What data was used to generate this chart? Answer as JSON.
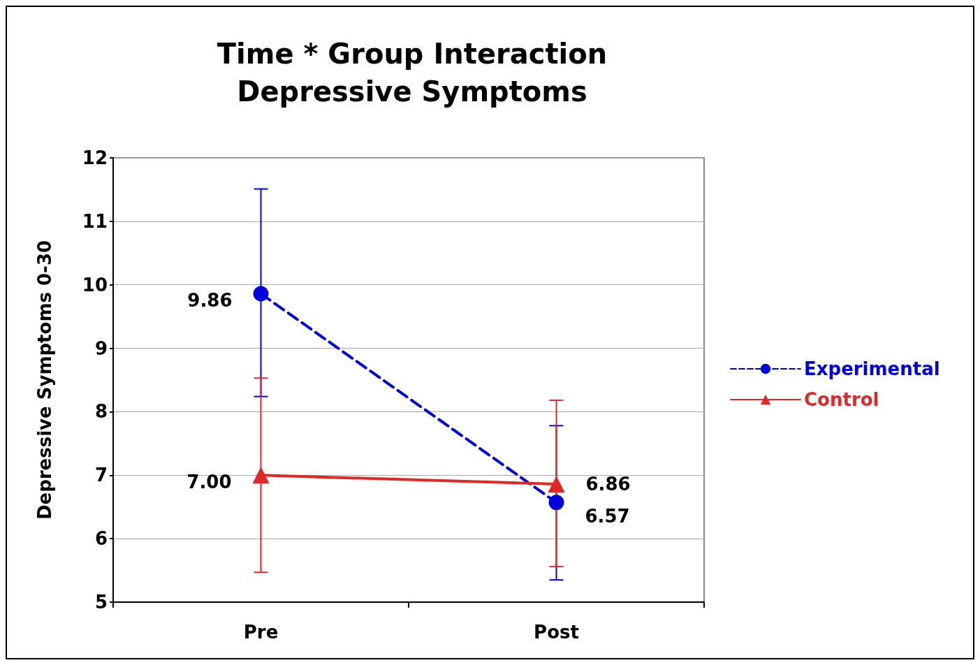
{
  "chart_data": {
    "type": "line",
    "title": "Time * Group Interaction",
    "subtitle": "Depressive Symptoms",
    "ylabel": "Depressive Symptoms 0-30",
    "categories": [
      "Pre",
      "Post"
    ],
    "series": [
      {
        "name": "Experimental",
        "color": "#0000e0",
        "values": [
          9.86,
          6.57
        ],
        "errors": [
          [
            8.24,
            11.51
          ],
          [
            5.35,
            7.78
          ]
        ],
        "value_labels": [
          "9.86",
          "6.57"
        ],
        "marker": "circle",
        "line_style": "dashed"
      },
      {
        "name": "Control",
        "color": "#e02828",
        "values": [
          7.0,
          6.86
        ],
        "errors": [
          [
            5.47,
            8.53
          ],
          [
            5.56,
            8.18
          ]
        ],
        "value_labels": [
          "7.00",
          "6.86"
        ],
        "marker": "triangle",
        "line_style": "solid"
      }
    ],
    "ylim": [
      5,
      12
    ],
    "yticks": [
      5,
      6,
      7,
      8,
      9,
      10,
      11,
      12
    ],
    "grid": "y",
    "legend": "right"
  }
}
